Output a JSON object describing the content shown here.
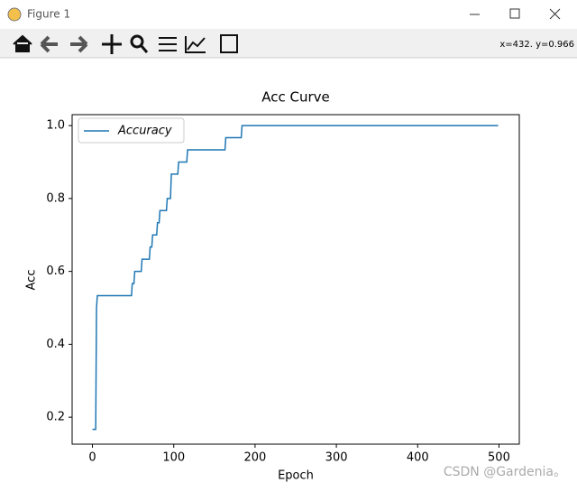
{
  "window": {
    "title": "Figure 1",
    "coordinates": "x=432.  y=0.966",
    "watermark": "CSDN @Gardenia。"
  },
  "chart_data": {
    "type": "line",
    "title": "Acc Curve",
    "x_label": "Epoch",
    "y_label": "Acc",
    "x": [
      0,
      4,
      5,
      6,
      48,
      49,
      51,
      52,
      60,
      61,
      70,
      71,
      73,
      74,
      79,
      80,
      82,
      83,
      91,
      92,
      96,
      97,
      105,
      106,
      116,
      117,
      163,
      164,
      183,
      184,
      499
    ],
    "series": [
      {
        "name": "Accuracy",
        "color": "#1f77b4",
        "values": [
          0.1667,
          0.1667,
          0.5,
          0.5333,
          0.5333,
          0.5667,
          0.5667,
          0.6,
          0.6,
          0.6333,
          0.6333,
          0.6667,
          0.6667,
          0.7,
          0.7,
          0.7333,
          0.7333,
          0.7667,
          0.7667,
          0.8,
          0.8,
          0.8667,
          0.8667,
          0.9,
          0.9,
          0.9333,
          0.9333,
          0.9667,
          0.9667,
          1.0,
          1.0
        ]
      }
    ],
    "xlim": [
      -25,
      525
    ],
    "ylim": [
      0.126,
      1.03
    ],
    "xticks": [
      0,
      100,
      200,
      300,
      400,
      500
    ],
    "yticks": [
      0.2,
      0.4,
      0.6,
      0.8,
      {
        "value": 1,
        "label": "1.0"
      }
    ],
    "legend": "upper left"
  }
}
